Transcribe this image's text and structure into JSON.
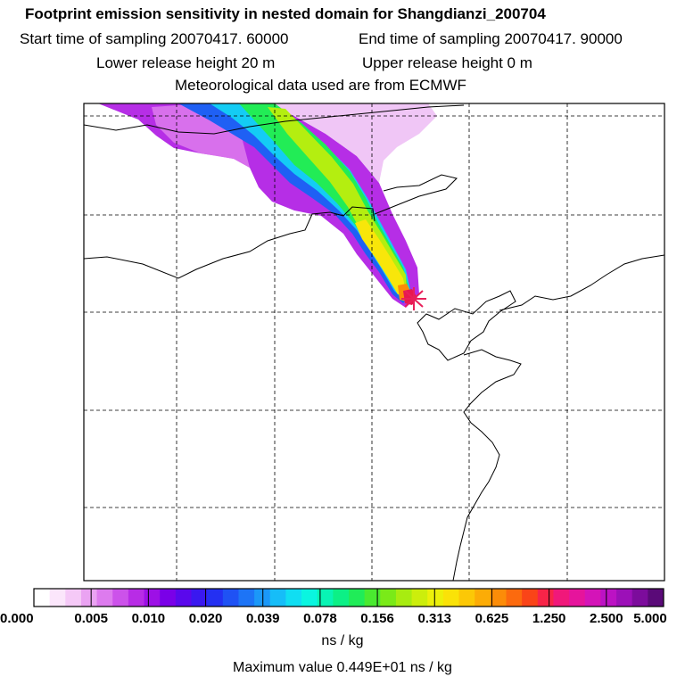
{
  "header": {
    "title": "Footprint emission sensitivity in nested domain for Shangdianzi_200704",
    "start_label": "Start time of sampling 20070417. 60000",
    "end_label": "End time of sampling 20070417. 90000",
    "lower_label": "Lower release height   20 m",
    "upper_label": "Upper release height    0 m",
    "met_label": "Meteorological data used are from ECMWF"
  },
  "legend": {
    "ticks": [
      "0.000",
      "0.005",
      "0.010",
      "0.020",
      "0.039",
      "0.078",
      "0.156",
      "0.313",
      "0.625",
      "1.250",
      "2.500",
      "5.000"
    ],
    "units": "ns / kg",
    "max_value_label": "Maximum value  0.449E+01 ns / kg",
    "colors": [
      "#ffffff",
      "#fbe6fb",
      "#f5c9f7",
      "#eaa3f2",
      "#dd7bee",
      "#cc52ea",
      "#b82ce6",
      "#9d10e6",
      "#7a00e8",
      "#5a08ec",
      "#3a18f0",
      "#2430f2",
      "#1f52f4",
      "#1d74f6",
      "#1b98f8",
      "#16bdf8",
      "#10def2",
      "#0af5e0",
      "#08f4b4",
      "#0cf086",
      "#20ec58",
      "#4aea30",
      "#7aea18",
      "#a8ec10",
      "#ccee0c",
      "#ecf00a",
      "#fae208",
      "#fcc806",
      "#fcac06",
      "#fc8c08",
      "#fc6a0e",
      "#fa4418",
      "#f82448",
      "#f0187a",
      "#e6149c",
      "#d414b8",
      "#bc12c4",
      "#9c10b8",
      "#7c0c9c",
      "#5a0a78"
    ]
  },
  "receptor": {
    "marker_color": "#e8205a"
  }
}
